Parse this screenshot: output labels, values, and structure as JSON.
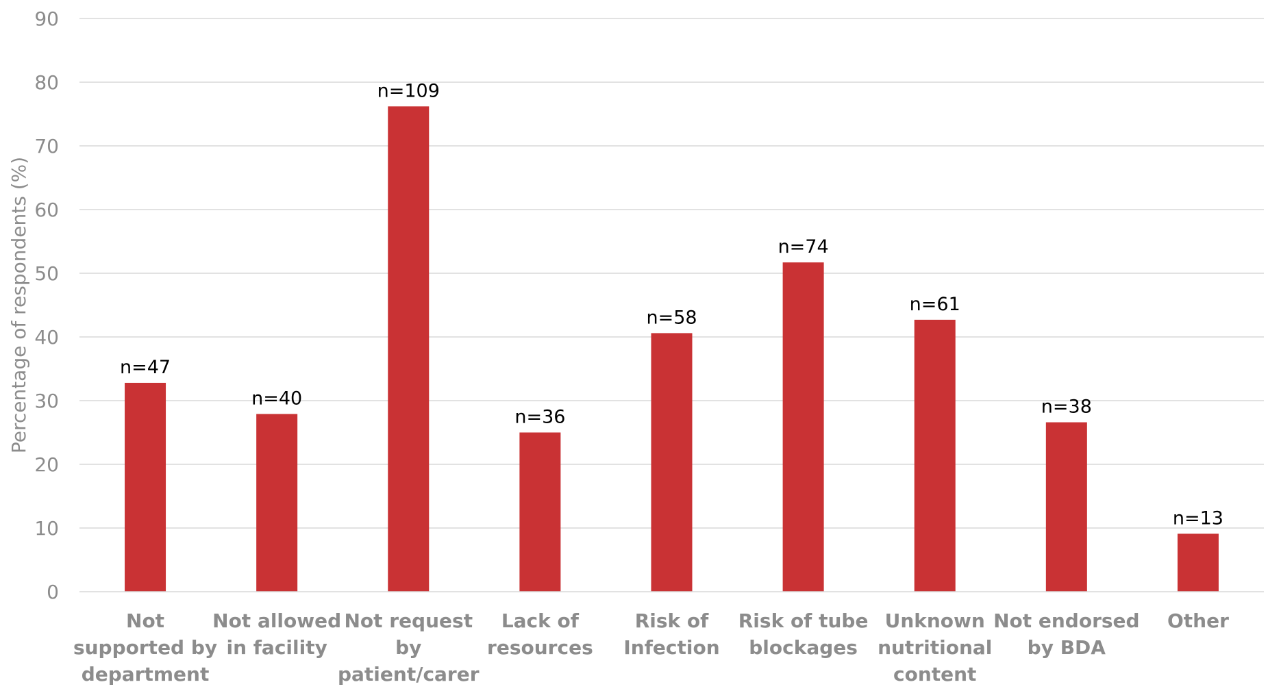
{
  "chart_data": {
    "type": "bar",
    "title": "",
    "xlabel": "",
    "ylabel": "Percentage of respondents (%)",
    "ylim": [
      0,
      90
    ],
    "yticks": [
      0,
      10,
      20,
      30,
      40,
      50,
      60,
      70,
      80,
      90
    ],
    "grid": true,
    "legend": "none",
    "bar_color": "#c93234",
    "categories": [
      [
        "Not",
        "supported by",
        "department"
      ],
      [
        "Not allowed",
        "in facility"
      ],
      [
        "Not request",
        "by",
        "patient/carer"
      ],
      [
        "Lack of",
        "resources"
      ],
      [
        "Risk of",
        "Infection"
      ],
      [
        "Risk of tube",
        "blockages"
      ],
      [
        "Unknown",
        "nutritional",
        "content"
      ],
      [
        "Not endorsed",
        "by BDA"
      ],
      [
        "Other"
      ]
    ],
    "values": [
      32.8,
      27.9,
      76.2,
      25.0,
      40.6,
      51.7,
      42.7,
      26.6,
      9.1
    ],
    "data_labels": [
      "n=47",
      "n=40",
      "n=109",
      "n=36",
      "n=58",
      "n=74",
      "n=61",
      "n=38",
      "n=13"
    ]
  }
}
